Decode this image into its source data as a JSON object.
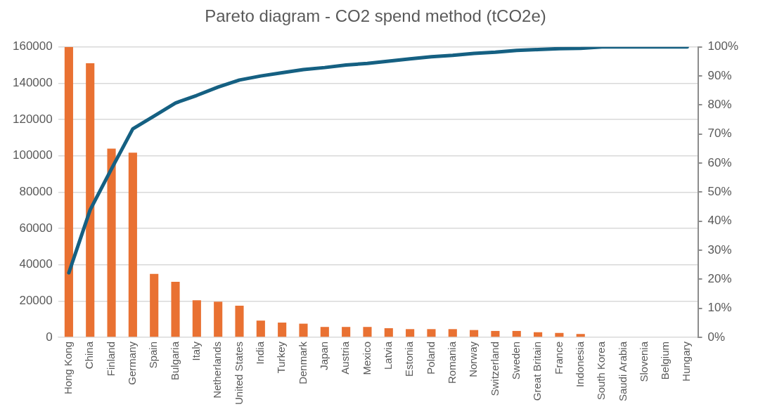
{
  "chart_data": {
    "type": "bar",
    "title": "Pareto diagram - CO2 spend method (tCO2e)",
    "categories": [
      "Hong Kong",
      "China",
      "Finland",
      "Germany",
      "Spain",
      "Bulgaria",
      "Italy",
      "Netherlands",
      "United States",
      "India",
      "Turkey",
      "Denmark",
      "Japan",
      "Austria",
      "Mexico",
      "Latvia",
      "Estonia",
      "Poland",
      "Romania",
      "Norway",
      "Switzerland",
      "Sweden",
      "Great Britain",
      "France",
      "Indonesia",
      "South Korea",
      "Saudi Arabia",
      "Slovenia",
      "Belgium",
      "Hungary"
    ],
    "series": [
      {
        "axis": "y",
        "color": "#e97132",
        "values": [
          160000,
          151000,
          104000,
          101700,
          34900,
          30600,
          20400,
          19600,
          17400,
          9200,
          8100,
          7500,
          5700,
          5700,
          5700,
          5000,
          4500,
          4500,
          4500,
          4000,
          3500,
          3500,
          2800,
          2400,
          1800,
          0,
          0,
          0,
          0,
          0
        ]
      },
      {
        "type": "line",
        "axis": "y2",
        "color": "#156082",
        "marker": "none",
        "values": [
          22.2,
          43.9,
          58,
          71.8,
          76.2,
          80.7,
          83.3,
          86.2,
          88.6,
          90,
          91.1,
          92.2,
          92.9,
          93.8,
          94.3,
          95.1,
          95.9,
          96.6,
          97.1,
          97.8,
          98.2,
          98.8,
          99.1,
          99.4,
          99.5,
          100,
          100,
          100,
          100,
          100
        ]
      }
    ],
    "ylim": [
      0,
      160000
    ],
    "yticks": [
      0,
      20000,
      40000,
      60000,
      80000,
      100000,
      120000,
      140000,
      160000
    ],
    "y2lim": [
      0,
      100
    ],
    "y2ticks": [
      {
        "value": 0,
        "label": "0%"
      },
      {
        "value": 10,
        "label": "10%"
      },
      {
        "value": 20,
        "label": "20%"
      },
      {
        "value": 30,
        "label": "30%"
      },
      {
        "value": 40,
        "label": "40%"
      },
      {
        "value": 50,
        "label": "50%"
      },
      {
        "value": 60,
        "label": "60%"
      },
      {
        "value": 70,
        "label": "70%"
      },
      {
        "value": 80,
        "label": "80%"
      },
      {
        "value": 90,
        "label": "90%"
      },
      {
        "value": 100,
        "label": "100%"
      }
    ],
    "grid": "y",
    "legend": false
  }
}
